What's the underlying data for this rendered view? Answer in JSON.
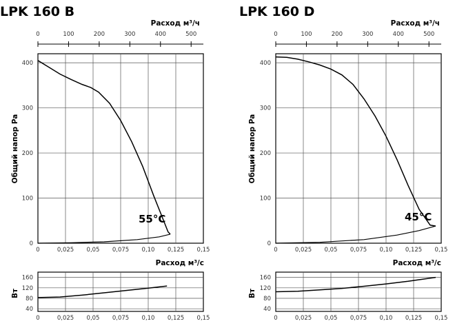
{
  "chart_data": [
    {
      "type": "line",
      "title": "LPK 160 B",
      "top_axis": {
        "label": "Расход м³/ч",
        "ticks": [
          "0",
          "100",
          "200",
          "300",
          "400",
          "500"
        ],
        "range": [
          0,
          540
        ]
      },
      "x_axis": {
        "label": "Расход м³/с",
        "ticks": [
          "0",
          "0,025",
          "0,05",
          "0,075",
          "0,10",
          "0,125",
          "0,15"
        ],
        "range": [
          0,
          0.15
        ]
      },
      "pressure_axis": {
        "label": "Общий напор Pa",
        "ticks": [
          "0",
          "100",
          "200",
          "300",
          "400"
        ],
        "range": [
          0,
          420
        ]
      },
      "power_axis": {
        "label": "Вт",
        "ticks": [
          "40",
          "80",
          "120",
          "160"
        ],
        "range": [
          30,
          180
        ]
      },
      "temperature_label": "55°C",
      "grid": true,
      "pressure_curve": {
        "x": [
          0,
          0.01,
          0.02,
          0.03,
          0.04,
          0.048,
          0.055,
          0.065,
          0.075,
          0.085,
          0.095,
          0.105,
          0.112,
          0.118,
          0.12
        ],
        "y": [
          405,
          390,
          375,
          363,
          352,
          345,
          335,
          310,
          272,
          225,
          170,
          105,
          62,
          25,
          20
        ]
      },
      "system_curve": {
        "x": [
          0,
          0.03,
          0.06,
          0.09,
          0.11,
          0.12
        ],
        "y": [
          0,
          1,
          3,
          8,
          14,
          20
        ]
      },
      "power_curve": {
        "x": [
          0,
          0.02,
          0.04,
          0.06,
          0.08,
          0.1,
          0.117
        ],
        "y": [
          83,
          85,
          92,
          101,
          110,
          119,
          127
        ]
      }
    },
    {
      "type": "line",
      "title": "LPK 160 D",
      "top_axis": {
        "label": "Расход м³/ч",
        "ticks": [
          "0",
          "100",
          "200",
          "300",
          "400",
          "500"
        ],
        "range": [
          0,
          540
        ]
      },
      "x_axis": {
        "label": "Расход м³/с",
        "ticks": [
          "0",
          "0,025",
          "0,05",
          "0,075",
          "0,10",
          "0,125",
          "0,15"
        ],
        "range": [
          0,
          0.15
        ]
      },
      "pressure_axis": {
        "label": "Общий напор Pa",
        "ticks": [
          "0",
          "100",
          "200",
          "300",
          "400"
        ],
        "range": [
          0,
          420
        ]
      },
      "power_axis": {
        "label": "Вт",
        "ticks": [
          "40",
          "80",
          "120",
          "160"
        ],
        "range": [
          30,
          180
        ]
      },
      "temperature_label": "45°C",
      "grid": true,
      "pressure_curve": {
        "x": [
          0,
          0.01,
          0.02,
          0.03,
          0.04,
          0.05,
          0.06,
          0.07,
          0.08,
          0.09,
          0.1,
          0.11,
          0.12,
          0.13,
          0.14,
          0.145
        ],
        "y": [
          413,
          412,
          408,
          402,
          395,
          386,
          373,
          352,
          320,
          282,
          237,
          185,
          128,
          75,
          40,
          38
        ]
      },
      "system_curve": {
        "x": [
          0,
          0.04,
          0.08,
          0.11,
          0.13,
          0.145
        ],
        "y": [
          0,
          2,
          8,
          18,
          28,
          38
        ]
      },
      "power_curve": {
        "x": [
          0,
          0.02,
          0.04,
          0.06,
          0.08,
          0.1,
          0.12,
          0.145
        ],
        "y": [
          105,
          107,
          112,
          118,
          126,
          135,
          145,
          160
        ]
      }
    }
  ]
}
